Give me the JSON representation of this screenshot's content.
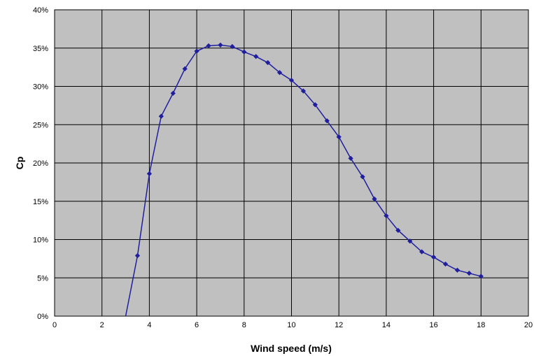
{
  "chart_data": {
    "type": "line",
    "title": "",
    "xlabel": "Wind speed (m/s)",
    "ylabel": "Cp",
    "xlim": [
      0,
      20
    ],
    "ylim": [
      0,
      40
    ],
    "x_ticks": [
      0,
      2,
      4,
      6,
      8,
      10,
      12,
      14,
      16,
      18,
      20
    ],
    "x_tick_labels": [
      "0",
      "2",
      "4",
      "6",
      "8",
      "10",
      "12",
      "14",
      "16",
      "18",
      "20"
    ],
    "y_ticks": [
      0,
      5,
      10,
      15,
      20,
      25,
      30,
      35,
      40
    ],
    "y_tick_labels": [
      "0%",
      "5%",
      "10%",
      "15%",
      "20%",
      "25%",
      "30%",
      "35%",
      "40%"
    ],
    "y_unit": "percent",
    "grid": true,
    "legend": "none",
    "colors": {
      "plot_background": "#c0c0c0",
      "grid": "#000000",
      "series": "#1f1f9e"
    },
    "series": [
      {
        "x": [
          3.0,
          3.5,
          4.0,
          4.5,
          5.0,
          5.5,
          6.0,
          6.5,
          7.0,
          7.5,
          8.0,
          8.5,
          9.0,
          9.5,
          10.0,
          10.5,
          11.0,
          11.5,
          12.0,
          12.5,
          13.0,
          13.5,
          14.0,
          14.5,
          15.0,
          15.5,
          16.0,
          16.5,
          17.0,
          17.5,
          18.0
        ],
        "y": [
          0,
          7.9,
          18.6,
          26.1,
          29.1,
          32.3,
          34.6,
          35.3,
          35.4,
          35.2,
          34.5,
          33.9,
          33.1,
          31.8,
          30.8,
          29.4,
          27.6,
          25.5,
          23.4,
          20.6,
          18.2,
          15.3,
          13.1,
          11.2,
          9.8,
          8.4,
          7.7,
          6.8,
          6.0,
          5.6,
          5.2
        ],
        "markers": true
      }
    ]
  }
}
